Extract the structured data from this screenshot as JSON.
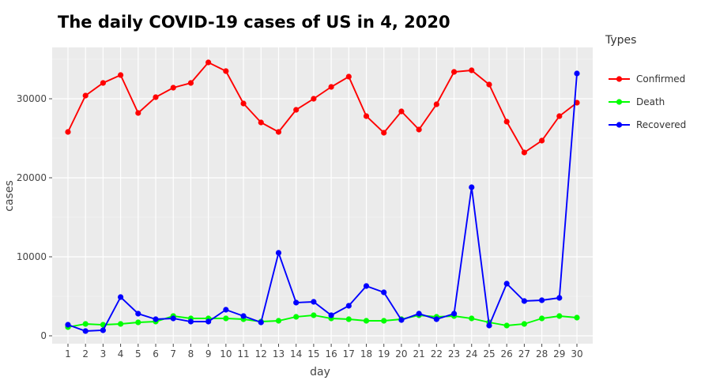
{
  "chart_data": {
    "type": "line",
    "title": "The daily COVID-19 cases of US in 4, 2020",
    "xlabel": "day",
    "ylabel": "cases",
    "x": [
      1,
      2,
      3,
      4,
      5,
      6,
      7,
      8,
      9,
      10,
      11,
      12,
      13,
      14,
      15,
      16,
      17,
      18,
      19,
      20,
      21,
      22,
      23,
      24,
      25,
      26,
      27,
      28,
      29,
      30
    ],
    "xlim": [
      0.1,
      30.9
    ],
    "ylim": [
      -1000,
      36500
    ],
    "y_ticks": [
      0,
      10000,
      20000,
      30000
    ],
    "grid": true,
    "legend_title": "Types",
    "legend_position": "right",
    "series": [
      {
        "name": "Confirmed",
        "color": "#ff0000",
        "values": [
          25800,
          30400,
          32000,
          33000,
          28200,
          30200,
          31400,
          32000,
          34600,
          33500,
          29400,
          27000,
          25800,
          28600,
          30000,
          31500,
          32800,
          27800,
          25700,
          28400,
          26100,
          29300,
          33400,
          33600,
          31800,
          27100,
          23200,
          24700,
          27800,
          29500
        ]
      },
      {
        "name": "Death",
        "color": "#00ff00",
        "values": [
          1100,
          1500,
          1400,
          1500,
          1700,
          1800,
          2500,
          2200,
          2200,
          2200,
          2100,
          1800,
          1900,
          2400,
          2600,
          2200,
          2100,
          1900,
          1900,
          2100,
          2600,
          2400,
          2500,
          2200,
          1700,
          1300,
          1500,
          2200,
          2500,
          2300
        ]
      },
      {
        "name": "Recovered",
        "color": "#0000ff",
        "values": [
          1400,
          600,
          700,
          4900,
          2800,
          2100,
          2200,
          1800,
          1800,
          3300,
          2500,
          1700,
          10500,
          4200,
          4300,
          2600,
          3800,
          6300,
          5500,
          2000,
          2800,
          2100,
          2800,
          18800,
          1300,
          6600,
          4400,
          4500,
          4800,
          33200
        ]
      }
    ]
  }
}
